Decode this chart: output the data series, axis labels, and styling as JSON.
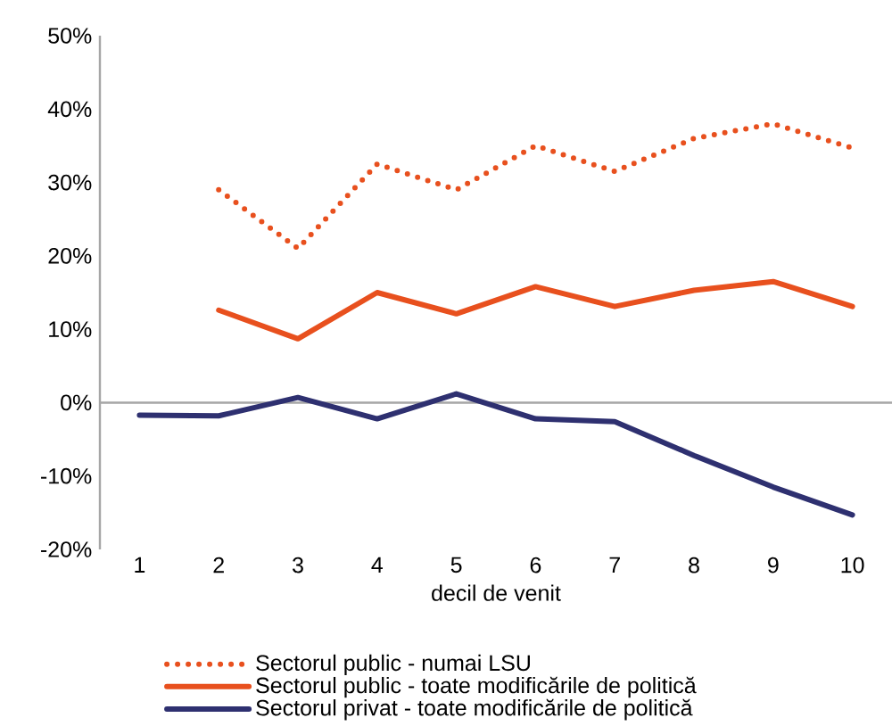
{
  "chart_data": {
    "type": "line",
    "xlabel": "decil de venit",
    "categories": [
      "1",
      "2",
      "3",
      "4",
      "5",
      "6",
      "7",
      "8",
      "9",
      "10"
    ],
    "series": [
      {
        "name": "Sectorul public  - numai LSU",
        "color": "#e8501e",
        "line_style": "dotted",
        "values": [
          null,
          29,
          21,
          32.5,
          29,
          35,
          31.5,
          36,
          38,
          34.7
        ]
      },
      {
        "name": "Sectorul public - toate modificările de politică",
        "color": "#e8501e",
        "line_style": "solid",
        "values": [
          null,
          12.6,
          8.7,
          15,
          12.1,
          15.8,
          13.1,
          15.3,
          16.5,
          13.1
        ]
      },
      {
        "name": "Sectorul privat - toate modificările de politică",
        "color": "#2e3070",
        "line_style": "solid",
        "values": [
          -1.7,
          -1.8,
          0.7,
          -2.2,
          1.2,
          -2.2,
          -2.6,
          -7.2,
          -11.5,
          -15.3
        ]
      }
    ],
    "ylim": [
      -20,
      50
    ],
    "yticks": [
      {
        "value": -20,
        "label": "-20%"
      },
      {
        "value": -10,
        "label": "-10%"
      },
      {
        "value": 0,
        "label": "0%"
      },
      {
        "value": 10,
        "label": "10%"
      },
      {
        "value": 20,
        "label": "20%"
      },
      {
        "value": 30,
        "label": "30%"
      },
      {
        "value": 40,
        "label": "40%"
      },
      {
        "value": 50,
        "label": "50%"
      }
    ],
    "legend": "bottom",
    "marker": "none"
  }
}
